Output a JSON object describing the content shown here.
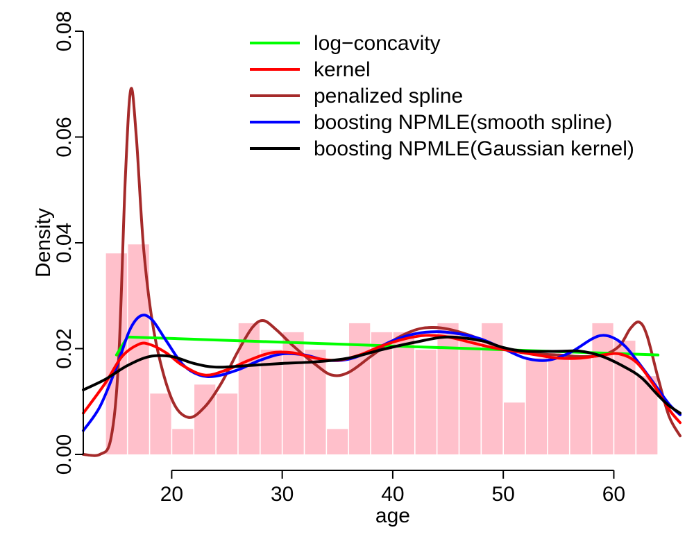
{
  "chart_data": {
    "type": "histogram",
    "xlabel": "age",
    "ylabel": "Density",
    "xlim": [
      12,
      66
    ],
    "ylim": [
      0,
      0.08
    ],
    "x_ticks": [
      20,
      30,
      40,
      50,
      60
    ],
    "y_ticks": [
      "0.00",
      "0.02",
      "0.04",
      "0.06",
      "0.08"
    ],
    "bar_color": "#ffc0cb",
    "bins": [
      {
        "x0": 14,
        "x1": 16,
        "density": 0.038
      },
      {
        "x0": 16,
        "x1": 18,
        "density": 0.0397
      },
      {
        "x0": 18,
        "x1": 20,
        "density": 0.0115
      },
      {
        "x0": 20,
        "x1": 22,
        "density": 0.0048
      },
      {
        "x0": 22,
        "x1": 24,
        "density": 0.0132
      },
      {
        "x0": 24,
        "x1": 26,
        "density": 0.0115
      },
      {
        "x0": 26,
        "x1": 28,
        "density": 0.0248
      },
      {
        "x0": 28,
        "x1": 30,
        "density": 0.0198
      },
      {
        "x0": 30,
        "x1": 32,
        "density": 0.0231
      },
      {
        "x0": 32,
        "x1": 34,
        "density": 0.0198
      },
      {
        "x0": 34,
        "x1": 36,
        "density": 0.0048
      },
      {
        "x0": 36,
        "x1": 38,
        "density": 0.0248
      },
      {
        "x0": 38,
        "x1": 40,
        "density": 0.0231
      },
      {
        "x0": 40,
        "x1": 42,
        "density": 0.0231
      },
      {
        "x0": 42,
        "x1": 44,
        "density": 0.0198
      },
      {
        "x0": 44,
        "x1": 46,
        "density": 0.0248
      },
      {
        "x0": 46,
        "x1": 48,
        "density": 0.0215
      },
      {
        "x0": 48,
        "x1": 50,
        "density": 0.0248
      },
      {
        "x0": 50,
        "x1": 52,
        "density": 0.0098
      },
      {
        "x0": 52,
        "x1": 54,
        "density": 0.0182
      },
      {
        "x0": 54,
        "x1": 56,
        "density": 0.0182
      },
      {
        "x0": 56,
        "x1": 58,
        "density": 0.0182
      },
      {
        "x0": 58,
        "x1": 60,
        "density": 0.0248
      },
      {
        "x0": 60,
        "x1": 62,
        "density": 0.0215
      },
      {
        "x0": 62,
        "x1": 64,
        "density": 0.0148
      }
    ],
    "series": [
      {
        "name": "log−concavity",
        "color": "#00ff00",
        "points": [
          [
            15,
            0.0188
          ],
          [
            16,
            0.0222
          ],
          [
            64,
            0.0188
          ]
        ]
      },
      {
        "name": "kernel",
        "color": "#ff0000",
        "points": [
          [
            12,
            0.0078
          ],
          [
            14,
            0.0135
          ],
          [
            15.5,
            0.0185
          ],
          [
            17,
            0.0208
          ],
          [
            18,
            0.0208
          ],
          [
            19.5,
            0.0192
          ],
          [
            21,
            0.0168
          ],
          [
            23,
            0.015
          ],
          [
            25,
            0.016
          ],
          [
            27,
            0.0178
          ],
          [
            29,
            0.0192
          ],
          [
            31,
            0.0192
          ],
          [
            33,
            0.0182
          ],
          [
            35,
            0.0178
          ],
          [
            37,
            0.0188
          ],
          [
            39,
            0.0205
          ],
          [
            41,
            0.0218
          ],
          [
            43,
            0.0225
          ],
          [
            45,
            0.0222
          ],
          [
            47,
            0.0212
          ],
          [
            49,
            0.0202
          ],
          [
            51,
            0.0195
          ],
          [
            53,
            0.0188
          ],
          [
            55,
            0.0182
          ],
          [
            57,
            0.0182
          ],
          [
            59,
            0.0188
          ],
          [
            60.5,
            0.019
          ],
          [
            62,
            0.0175
          ],
          [
            63.5,
            0.0135
          ],
          [
            65,
            0.0085
          ],
          [
            66,
            0.006
          ]
        ]
      },
      {
        "name": "penalized spline",
        "color": "#a52a2a",
        "points": [
          [
            12,
            0.0
          ],
          [
            13.5,
            0.0
          ],
          [
            14.5,
            0.003
          ],
          [
            15.2,
            0.018
          ],
          [
            15.8,
            0.052
          ],
          [
            16.3,
            0.069
          ],
          [
            16.8,
            0.06
          ],
          [
            17.5,
            0.038
          ],
          [
            18.5,
            0.022
          ],
          [
            20,
            0.0105
          ],
          [
            21.5,
            0.007
          ],
          [
            23,
            0.009
          ],
          [
            24.5,
            0.0135
          ],
          [
            26,
            0.0195
          ],
          [
            27.3,
            0.024
          ],
          [
            28.3,
            0.0253
          ],
          [
            29.5,
            0.0235
          ],
          [
            31,
            0.0205
          ],
          [
            33,
            0.017
          ],
          [
            34.5,
            0.015
          ],
          [
            36,
            0.0155
          ],
          [
            38,
            0.0185
          ],
          [
            40,
            0.0215
          ],
          [
            42,
            0.0235
          ],
          [
            43.5,
            0.024
          ],
          [
            45,
            0.0237
          ],
          [
            47,
            0.0225
          ],
          [
            49,
            0.0208
          ],
          [
            51,
            0.0195
          ],
          [
            53,
            0.019
          ],
          [
            55,
            0.0188
          ],
          [
            57,
            0.0185
          ],
          [
            59,
            0.0188
          ],
          [
            60.5,
            0.0205
          ],
          [
            61.5,
            0.0238
          ],
          [
            62.3,
            0.025
          ],
          [
            63,
            0.0225
          ],
          [
            64,
            0.0145
          ],
          [
            65,
            0.0072
          ],
          [
            66,
            0.0035
          ]
        ]
      },
      {
        "name": "boosting NPMLE(smooth spline)",
        "color": "#0000ff",
        "points": [
          [
            12,
            0.0045
          ],
          [
            13.5,
            0.009
          ],
          [
            15,
            0.0165
          ],
          [
            16.2,
            0.0235
          ],
          [
            17.2,
            0.0262
          ],
          [
            18.2,
            0.0255
          ],
          [
            19.5,
            0.0215
          ],
          [
            21,
            0.017
          ],
          [
            22.5,
            0.015
          ],
          [
            24,
            0.0148
          ],
          [
            26,
            0.016
          ],
          [
            28,
            0.0178
          ],
          [
            30,
            0.019
          ],
          [
            32,
            0.0188
          ],
          [
            34,
            0.0178
          ],
          [
            36,
            0.018
          ],
          [
            38,
            0.0195
          ],
          [
            40,
            0.0215
          ],
          [
            42,
            0.0228
          ],
          [
            44,
            0.0232
          ],
          [
            46,
            0.0228
          ],
          [
            48,
            0.0218
          ],
          [
            50,
            0.02
          ],
          [
            52,
            0.0182
          ],
          [
            54,
            0.0178
          ],
          [
            56,
            0.0192
          ],
          [
            58,
            0.0218
          ],
          [
            59,
            0.0225
          ],
          [
            60,
            0.022
          ],
          [
            61,
            0.0205
          ],
          [
            62,
            0.018
          ],
          [
            63.5,
            0.0138
          ],
          [
            65,
            0.0095
          ],
          [
            66,
            0.0075
          ]
        ]
      },
      {
        "name": "boosting NPMLE(Gaussian kernel)",
        "color": "#000000",
        "points": [
          [
            12,
            0.0122
          ],
          [
            14,
            0.0142
          ],
          [
            16,
            0.0168
          ],
          [
            18,
            0.0185
          ],
          [
            20,
            0.0185
          ],
          [
            22,
            0.0172
          ],
          [
            24,
            0.0165
          ],
          [
            27,
            0.0168
          ],
          [
            30,
            0.0172
          ],
          [
            33,
            0.0175
          ],
          [
            36,
            0.0182
          ],
          [
            39,
            0.0198
          ],
          [
            42,
            0.0212
          ],
          [
            45,
            0.0222
          ],
          [
            48,
            0.0215
          ],
          [
            50,
            0.0202
          ],
          [
            52,
            0.0195
          ],
          [
            55,
            0.0195
          ],
          [
            57,
            0.0195
          ],
          [
            59,
            0.0185
          ],
          [
            61,
            0.0165
          ],
          [
            62.5,
            0.0145
          ],
          [
            64,
            0.0112
          ],
          [
            65,
            0.0092
          ],
          [
            66,
            0.0078
          ]
        ]
      }
    ]
  }
}
